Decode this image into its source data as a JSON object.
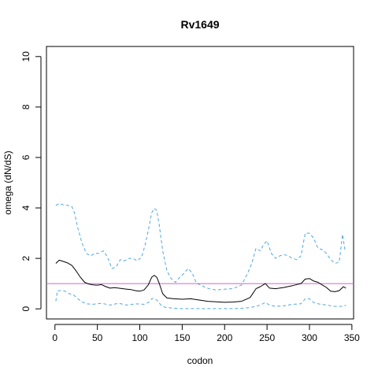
{
  "chart_data": {
    "type": "line",
    "title": "Rv1649",
    "xlabel": "codon",
    "ylabel": "omega (dN/dS)",
    "xlim": [
      -10,
      352
    ],
    "ylim": [
      -0.4,
      10.4
    ],
    "x_ticks": [
      0,
      50,
      100,
      150,
      200,
      250,
      300,
      350
    ],
    "y_ticks": [
      0,
      2,
      4,
      6,
      8,
      10
    ],
    "grid": false,
    "legend": "none",
    "reference_line": {
      "y": 1,
      "color": "#cc66cc"
    },
    "series": [
      {
        "role": "estimate",
        "color": "#000000",
        "dash": "solid",
        "points": [
          [
            1,
            1.8
          ],
          [
            5,
            1.93
          ],
          [
            10,
            1.88
          ],
          [
            15,
            1.82
          ],
          [
            20,
            1.72
          ],
          [
            25,
            1.5
          ],
          [
            30,
            1.25
          ],
          [
            35,
            1.05
          ],
          [
            40,
            0.98
          ],
          [
            45,
            0.95
          ],
          [
            50,
            0.94
          ],
          [
            55,
            0.96
          ],
          [
            60,
            0.88
          ],
          [
            65,
            0.82
          ],
          [
            70,
            0.84
          ],
          [
            75,
            0.82
          ],
          [
            80,
            0.8
          ],
          [
            85,
            0.78
          ],
          [
            90,
            0.76
          ],
          [
            95,
            0.72
          ],
          [
            100,
            0.7
          ],
          [
            105,
            0.75
          ],
          [
            110,
            0.95
          ],
          [
            114,
            1.25
          ],
          [
            117,
            1.33
          ],
          [
            120,
            1.25
          ],
          [
            123,
            1.0
          ],
          [
            127,
            0.6
          ],
          [
            132,
            0.43
          ],
          [
            140,
            0.4
          ],
          [
            150,
            0.38
          ],
          [
            160,
            0.4
          ],
          [
            170,
            0.35
          ],
          [
            180,
            0.3
          ],
          [
            190,
            0.28
          ],
          [
            200,
            0.26
          ],
          [
            210,
            0.27
          ],
          [
            220,
            0.3
          ],
          [
            230,
            0.45
          ],
          [
            237,
            0.8
          ],
          [
            242,
            0.88
          ],
          [
            248,
            1.0
          ],
          [
            253,
            0.82
          ],
          [
            260,
            0.8
          ],
          [
            270,
            0.85
          ],
          [
            280,
            0.92
          ],
          [
            290,
            1.0
          ],
          [
            295,
            1.18
          ],
          [
            300,
            1.2
          ],
          [
            305,
            1.1
          ],
          [
            310,
            1.05
          ],
          [
            315,
            0.95
          ],
          [
            320,
            0.85
          ],
          [
            325,
            0.7
          ],
          [
            330,
            0.68
          ],
          [
            335,
            0.72
          ],
          [
            340,
            0.88
          ],
          [
            343,
            0.82
          ]
        ]
      },
      {
        "role": "upper-bound",
        "color": "#4fa8dc",
        "dash": "dashed",
        "points": [
          [
            1,
            4.1
          ],
          [
            5,
            4.18
          ],
          [
            10,
            4.12
          ],
          [
            15,
            4.1
          ],
          [
            20,
            4.05
          ],
          [
            23,
            3.8
          ],
          [
            27,
            3.2
          ],
          [
            32,
            2.6
          ],
          [
            37,
            2.2
          ],
          [
            42,
            2.1
          ],
          [
            47,
            2.2
          ],
          [
            52,
            2.2
          ],
          [
            57,
            2.3
          ],
          [
            62,
            2.05
          ],
          [
            67,
            1.6
          ],
          [
            72,
            1.65
          ],
          [
            77,
            1.95
          ],
          [
            82,
            1.9
          ],
          [
            87,
            2.0
          ],
          [
            92,
            2.0
          ],
          [
            97,
            1.9
          ],
          [
            102,
            2.05
          ],
          [
            106,
            2.5
          ],
          [
            110,
            3.1
          ],
          [
            114,
            3.8
          ],
          [
            117,
            3.98
          ],
          [
            120,
            3.9
          ],
          [
            123,
            3.3
          ],
          [
            127,
            2.3
          ],
          [
            132,
            1.5
          ],
          [
            137,
            1.2
          ],
          [
            142,
            1.05
          ],
          [
            147,
            1.25
          ],
          [
            152,
            1.4
          ],
          [
            157,
            1.6
          ],
          [
            162,
            1.4
          ],
          [
            167,
            1.0
          ],
          [
            172,
            0.95
          ],
          [
            177,
            0.85
          ],
          [
            182,
            0.8
          ],
          [
            190,
            0.75
          ],
          [
            200,
            0.78
          ],
          [
            210,
            0.8
          ],
          [
            220,
            0.95
          ],
          [
            227,
            1.4
          ],
          [
            232,
            1.8
          ],
          [
            237,
            2.4
          ],
          [
            242,
            2.3
          ],
          [
            246,
            2.55
          ],
          [
            250,
            2.7
          ],
          [
            255,
            2.2
          ],
          [
            260,
            2.0
          ],
          [
            265,
            2.1
          ],
          [
            270,
            2.15
          ],
          [
            275,
            2.1
          ],
          [
            280,
            2.0
          ],
          [
            285,
            1.95
          ],
          [
            290,
            2.1
          ],
          [
            295,
            3.0
          ],
          [
            300,
            3.0
          ],
          [
            305,
            2.8
          ],
          [
            310,
            2.4
          ],
          [
            315,
            2.35
          ],
          [
            320,
            2.2
          ],
          [
            325,
            1.95
          ],
          [
            330,
            1.8
          ],
          [
            335,
            1.85
          ],
          [
            339,
            2.95
          ],
          [
            342,
            2.3
          ]
        ]
      },
      {
        "role": "lower-bound",
        "color": "#4fa8dc",
        "dash": "dashed",
        "points": [
          [
            1,
            0.3
          ],
          [
            3,
            0.72
          ],
          [
            8,
            0.72
          ],
          [
            12,
            0.7
          ],
          [
            17,
            0.6
          ],
          [
            22,
            0.55
          ],
          [
            27,
            0.4
          ],
          [
            32,
            0.27
          ],
          [
            37,
            0.2
          ],
          [
            45,
            0.18
          ],
          [
            55,
            0.22
          ],
          [
            65,
            0.15
          ],
          [
            75,
            0.22
          ],
          [
            85,
            0.15
          ],
          [
            95,
            0.2
          ],
          [
            105,
            0.18
          ],
          [
            110,
            0.25
          ],
          [
            114,
            0.4
          ],
          [
            117,
            0.42
          ],
          [
            120,
            0.35
          ],
          [
            125,
            0.15
          ],
          [
            130,
            0.06
          ],
          [
            140,
            0.02
          ],
          [
            150,
            0.01
          ],
          [
            160,
            0.01
          ],
          [
            170,
            0.01
          ],
          [
            180,
            0.01
          ],
          [
            190,
            0.01
          ],
          [
            200,
            0.01
          ],
          [
            210,
            0.01
          ],
          [
            220,
            0.02
          ],
          [
            230,
            0.05
          ],
          [
            237,
            0.1
          ],
          [
            242,
            0.15
          ],
          [
            248,
            0.25
          ],
          [
            253,
            0.15
          ],
          [
            260,
            0.1
          ],
          [
            270,
            0.12
          ],
          [
            280,
            0.18
          ],
          [
            290,
            0.2
          ],
          [
            295,
            0.4
          ],
          [
            300,
            0.4
          ],
          [
            305,
            0.25
          ],
          [
            310,
            0.2
          ],
          [
            320,
            0.15
          ],
          [
            330,
            0.1
          ],
          [
            340,
            0.1
          ],
          [
            343,
            0.15
          ]
        ]
      }
    ]
  }
}
